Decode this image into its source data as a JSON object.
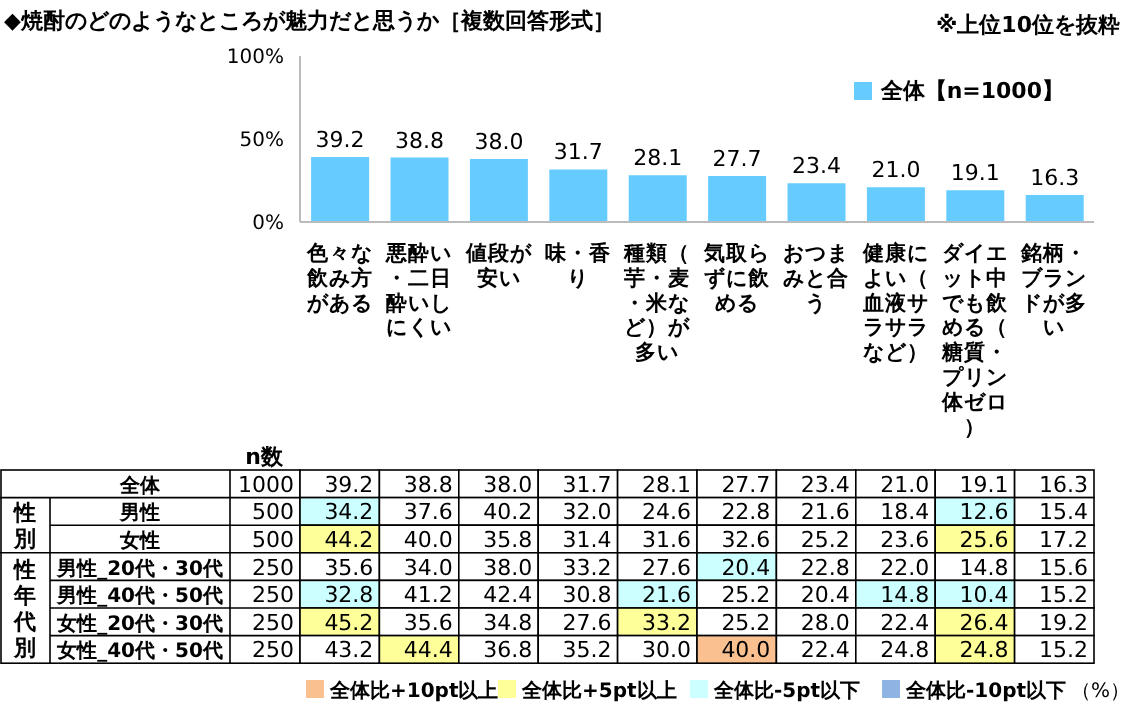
{
  "chart_data": [
    {
      "type": "bar",
      "title": "◆焼酎のどのようなところが魅力だと思うか［複数回答形式］",
      "subtitle": "※上位10位を抜粋",
      "categories": [
        "色々な飲み方がある",
        "悪酔い・二日酔いしにくい",
        "値段が安い",
        "味・香り",
        "種類（芋・麦・米など）が多い",
        "気取らずに飲める",
        "おつまみと合う",
        "健康によい（血液サラサラなど）",
        "ダイエット中でも飲める（糖質・プリン体ゼロ）",
        "銘柄・ブランドが多い"
      ],
      "series": [
        {
          "name": "全体【n=1000】",
          "color": "#66ccff",
          "values": [
            39.2,
            38.8,
            38.0,
            31.7,
            28.1,
            27.7,
            23.4,
            21.0,
            19.1,
            16.3
          ]
        }
      ],
      "ylim": [
        0,
        100
      ],
      "yticks": [
        {
          "value": 0,
          "label": "0%"
        },
        {
          "value": 50,
          "label": "50%"
        },
        {
          "value": 100,
          "label": "100%"
        }
      ],
      "value_labels": [
        "39.2",
        "38.8",
        "38.0",
        "31.7",
        "28.1",
        "27.7",
        "23.4",
        "21.0",
        "19.1",
        "16.3"
      ],
      "legend": "top right"
    },
    {
      "type": "heatmap",
      "categories": [
        "色々な飲み方がある",
        "悪酔い・二日酔いしにくい",
        "値段が安い",
        "味・香り",
        "種類（芋・麦・米など）が多い",
        "気取らずに飲める",
        "おつまみと合う",
        "健康によい（血液サラサラなど）",
        "ダイエット中でも飲める（糖質・プリン体ゼロ）",
        "銘柄・ブランドが多い"
      ],
      "tick_labels": "y",
      "y_categories": [
        "全体",
        "男性",
        "女性",
        "男性_20代・30代",
        "男性_40代・50代",
        "女性_20代・30代",
        "女性_40代・50代"
      ],
      "y2_categories": [
        "1000",
        "500",
        "500",
        "250",
        "250",
        "250",
        "250"
      ],
      "cells": [
        [
          39.2,
          38.8,
          38.0,
          31.7,
          28.1,
          27.7,
          23.4,
          21.0,
          19.1,
          16.3
        ],
        [
          34.2,
          37.6,
          40.2,
          32.0,
          24.6,
          22.8,
          21.6,
          18.4,
          12.6,
          15.4
        ],
        [
          44.2,
          40.0,
          35.8,
          31.4,
          31.6,
          32.6,
          25.2,
          23.6,
          25.6,
          17.2
        ],
        [
          35.6,
          34.0,
          38.0,
          33.2,
          27.6,
          20.4,
          22.8,
          22.0,
          14.8,
          15.6
        ],
        [
          32.8,
          41.2,
          42.4,
          30.8,
          21.6,
          25.2,
          20.4,
          14.8,
          10.4,
          15.2
        ],
        [
          45.2,
          35.6,
          34.8,
          27.6,
          33.2,
          25.2,
          28.0,
          22.4,
          26.4,
          19.2
        ],
        [
          43.2,
          44.4,
          36.8,
          35.2,
          30.0,
          40.0,
          22.4,
          24.8,
          24.8,
          15.2
        ]
      ],
      "cell_labels": [
        [
          "39.2",
          "38.8",
          "38.0",
          "31.7",
          "28.1",
          "27.7",
          "23.4",
          "21.0",
          "19.1",
          "16.3"
        ],
        [
          "34.2",
          "37.6",
          "40.2",
          "32.0",
          "24.6",
          "22.8",
          "21.6",
          "18.4",
          "12.6",
          "15.4"
        ],
        [
          "44.2",
          "40.0",
          "35.8",
          "31.4",
          "31.6",
          "32.6",
          "25.2",
          "23.6",
          "25.6",
          "17.2"
        ],
        [
          "35.6",
          "34.0",
          "38.0",
          "33.2",
          "27.6",
          "20.4",
          "22.8",
          "22.0",
          "14.8",
          "15.6"
        ],
        [
          "32.8",
          "41.2",
          "42.4",
          "30.8",
          "21.6",
          "25.2",
          "20.4",
          "14.8",
          "10.4",
          "15.2"
        ],
        [
          "45.2",
          "35.6",
          "34.8",
          "27.6",
          "33.2",
          "25.2",
          "28.0",
          "22.4",
          "26.4",
          "19.2"
        ],
        [
          "43.2",
          "44.4",
          "36.8",
          "35.2",
          "30.0",
          "40.0",
          "22.4",
          "24.8",
          "24.8",
          "15.2"
        ]
      ],
      "annotations": [
        "n数",
        "性別",
        "性年代別",
        "全体比+10pt以上",
        "全体比+5pt以上",
        "全体比-5pt以下",
        "全体比-10pt以下",
        "（%）"
      ]
    }
  ]
}
